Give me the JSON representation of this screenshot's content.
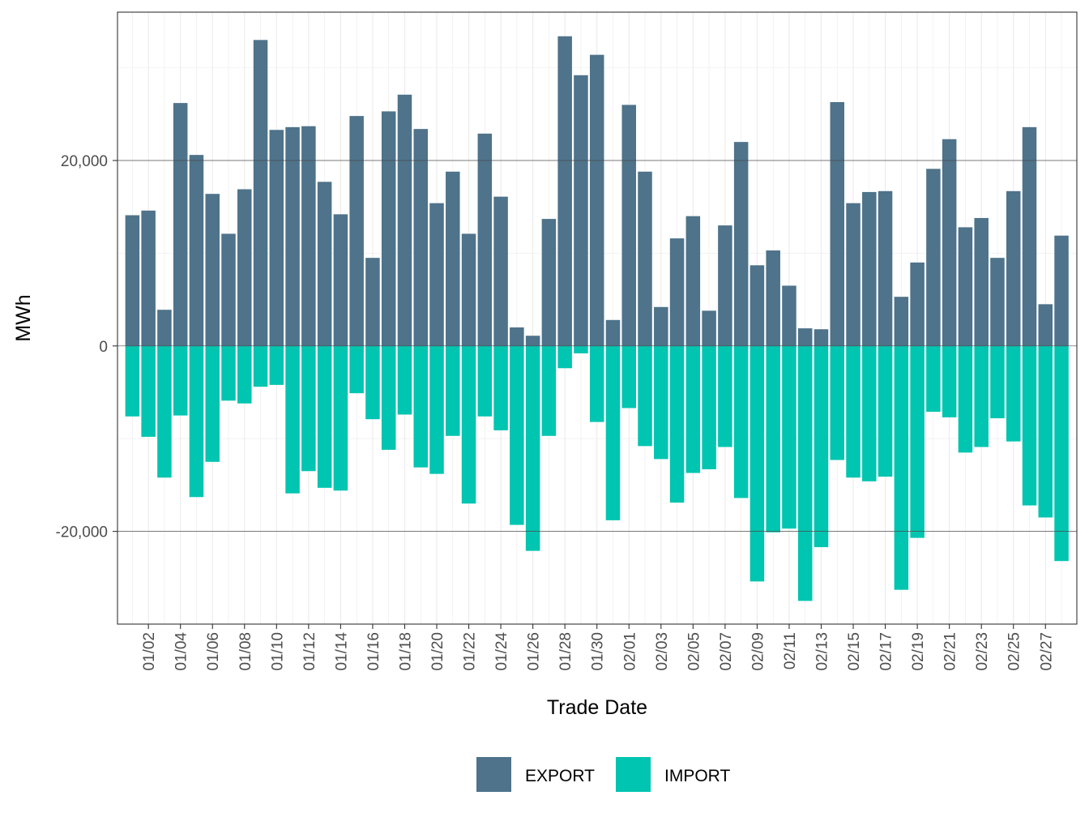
{
  "chart_data": {
    "type": "bar",
    "stacked": true,
    "title": "",
    "xlabel": "Trade Date",
    "ylabel": "MWh",
    "ylim": [
      -30000,
      36000
    ],
    "yticks": [
      -20000,
      0,
      20000
    ],
    "ytick_labels": [
      "-20,000",
      "0",
      "20,000"
    ],
    "legend_position": "bottom",
    "grid": true,
    "categories": [
      "01/01",
      "01/02",
      "01/03",
      "01/04",
      "01/05",
      "01/06",
      "01/07",
      "01/08",
      "01/09",
      "01/10",
      "01/11",
      "01/12",
      "01/13",
      "01/14",
      "01/15",
      "01/16",
      "01/17",
      "01/18",
      "01/19",
      "01/20",
      "01/21",
      "01/22",
      "01/23",
      "01/24",
      "01/25",
      "01/26",
      "01/27",
      "01/28",
      "01/29",
      "01/30",
      "01/31",
      "02/01",
      "02/02",
      "02/03",
      "02/04",
      "02/05",
      "02/06",
      "02/07",
      "02/08",
      "02/09",
      "02/10",
      "02/11",
      "02/12",
      "02/13",
      "02/14",
      "02/15",
      "02/16",
      "02/17",
      "02/18",
      "02/19",
      "02/20",
      "02/21",
      "02/22",
      "02/23",
      "02/24",
      "02/25",
      "02/26",
      "02/27",
      "02/28"
    ],
    "xtick_labels": [
      "01/02",
      "01/04",
      "01/06",
      "01/08",
      "01/10",
      "01/12",
      "01/14",
      "01/16",
      "01/18",
      "01/20",
      "01/22",
      "01/24",
      "01/26",
      "01/28",
      "01/30",
      "02/01",
      "02/03",
      "02/05",
      "02/07",
      "02/09",
      "02/11",
      "02/13",
      "02/15",
      "02/17",
      "02/19",
      "02/21",
      "02/23",
      "02/25",
      "02/27"
    ],
    "series": [
      {
        "name": "EXPORT",
        "color": "#4e738a",
        "values": [
          14100,
          14600,
          3900,
          26200,
          20600,
          16400,
          12100,
          16900,
          33000,
          23300,
          23600,
          23700,
          17700,
          14200,
          24800,
          9500,
          25300,
          27100,
          23400,
          15400,
          18800,
          12100,
          22900,
          16100,
          2000,
          1100,
          13700,
          33400,
          29200,
          31400,
          2800,
          26000,
          18800,
          4200,
          11600,
          14000,
          3800,
          13000,
          22000,
          8700,
          10300,
          6500,
          1900,
          1800,
          26300,
          15400,
          16600,
          16700,
          5300,
          9000,
          19100,
          22300,
          12800,
          13800,
          9500,
          16700,
          23600,
          4500,
          11900
        ]
      },
      {
        "name": "IMPORT",
        "color": "#00c5b0",
        "values": [
          -7600,
          -9800,
          -14200,
          -7500,
          -16300,
          -12500,
          -5900,
          -6200,
          -4400,
          -4200,
          -15900,
          -13500,
          -15300,
          -15600,
          -5100,
          -7900,
          -11200,
          -7400,
          -13100,
          -13800,
          -9700,
          -17000,
          -7600,
          -9100,
          -19300,
          -22100,
          -9700,
          -2400,
          -800,
          -8200,
          -18800,
          -6700,
          -10800,
          -12200,
          -16900,
          -13700,
          -13300,
          -10900,
          -16400,
          -25400,
          -20100,
          -19700,
          -27500,
          -21700,
          -12300,
          -14200,
          -14600,
          -14100,
          -26300,
          -20700,
          -7100,
          -7700,
          -11500,
          -10900,
          -7800,
          -10300,
          -17200,
          -18500,
          -23200
        ]
      }
    ]
  }
}
